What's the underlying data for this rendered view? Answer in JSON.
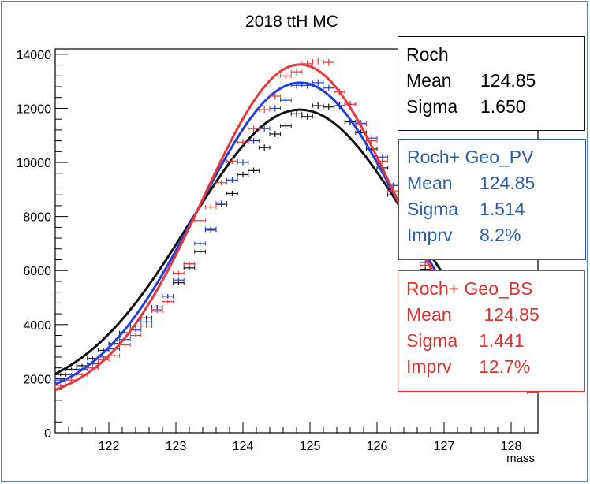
{
  "chart_data": {
    "type": "line",
    "title": "2018 ttH MC",
    "xlabel": "mass",
    "ylabel": "",
    "xlim": [
      121.2,
      128.4
    ],
    "ylim": [
      0,
      14200
    ],
    "xticks": [
      122,
      123,
      124,
      125,
      126,
      127,
      128
    ],
    "xtick_labels": [
      "122",
      "123",
      "124",
      "125",
      "126",
      "127",
      "128"
    ],
    "yticks": [
      0,
      2000,
      4000,
      6000,
      8000,
      10000,
      12000,
      14000
    ],
    "ytick_labels": [
      "0",
      "2000",
      "4000",
      "6000",
      "8000",
      "10000",
      "12000",
      "14000"
    ],
    "grid": false,
    "bin_width": 0.16,
    "series": [
      {
        "name": "Roch",
        "color": "#111111",
        "fit": {
          "mean": 124.85,
          "sigma": 1.65,
          "peak": 11950,
          "base": 1250
        },
        "points": [
          [
            121.28,
            2150
          ],
          [
            121.44,
            2350
          ],
          [
            121.6,
            2480
          ],
          [
            121.76,
            2750
          ],
          [
            121.92,
            3050
          ],
          [
            122.08,
            3300
          ],
          [
            122.24,
            3700
          ],
          [
            122.4,
            3950
          ],
          [
            122.56,
            4250
          ],
          [
            122.72,
            4650
          ],
          [
            122.88,
            5050
          ],
          [
            123.04,
            5550
          ],
          [
            123.2,
            6100
          ],
          [
            123.36,
            6700
          ],
          [
            123.52,
            7500
          ],
          [
            123.68,
            8450
          ],
          [
            123.84,
            8850
          ],
          [
            124.0,
            9550
          ],
          [
            124.16,
            9700
          ],
          [
            124.32,
            10550
          ],
          [
            124.48,
            11050
          ],
          [
            124.64,
            11350
          ],
          [
            124.8,
            11800
          ],
          [
            124.96,
            11700
          ],
          [
            125.12,
            12100
          ],
          [
            125.28,
            12050
          ],
          [
            125.44,
            12100
          ],
          [
            125.6,
            11500
          ],
          [
            125.76,
            11100
          ],
          [
            125.92,
            10500
          ],
          [
            126.08,
            9800
          ],
          [
            126.24,
            8800
          ],
          [
            126.4,
            8100
          ],
          [
            126.56,
            7100
          ],
          [
            126.72,
            6050
          ]
        ]
      },
      {
        "name": "Roch+ Geo_PV",
        "color": "#1f3fe0",
        "fit": {
          "mean": 124.85,
          "sigma": 1.514,
          "peak": 12950,
          "base": 1150
        },
        "points": [
          [
            121.28,
            1950
          ],
          [
            121.44,
            2150
          ],
          [
            121.6,
            2350
          ],
          [
            121.76,
            2550
          ],
          [
            121.92,
            2800
          ],
          [
            122.08,
            3100
          ],
          [
            122.24,
            3450
          ],
          [
            122.4,
            3800
          ],
          [
            122.56,
            4100
          ],
          [
            122.72,
            4550
          ],
          [
            122.88,
            5050
          ],
          [
            123.04,
            5650
          ],
          [
            123.2,
            6250
          ],
          [
            123.36,
            7000
          ],
          [
            123.52,
            7550
          ],
          [
            123.68,
            8500
          ],
          [
            123.84,
            9350
          ],
          [
            124.0,
            10000
          ],
          [
            124.16,
            10800
          ],
          [
            124.32,
            11250
          ],
          [
            124.48,
            12000
          ],
          [
            124.64,
            12300
          ],
          [
            124.8,
            12850
          ],
          [
            124.96,
            12850
          ],
          [
            125.12,
            12950
          ],
          [
            125.28,
            12750
          ],
          [
            125.44,
            12600
          ],
          [
            125.6,
            12150
          ],
          [
            125.76,
            11450
          ],
          [
            125.92,
            10900
          ],
          [
            126.08,
            10200
          ],
          [
            126.24,
            9150
          ],
          [
            126.4,
            8150
          ],
          [
            126.56,
            7300
          ],
          [
            126.72,
            6300
          ]
        ]
      },
      {
        "name": "Roch+ Geo_BS",
        "color": "#e8393a",
        "fit": {
          "mean": 124.85,
          "sigma": 1.441,
          "peak": 13620,
          "base": 1080
        },
        "points": [
          [
            121.28,
            1750
          ],
          [
            121.44,
            1950
          ],
          [
            121.6,
            2150
          ],
          [
            121.76,
            2400
          ],
          [
            121.92,
            2700
          ],
          [
            122.08,
            2850
          ],
          [
            122.24,
            3250
          ],
          [
            122.4,
            3600
          ],
          [
            122.56,
            3950
          ],
          [
            122.72,
            4500
          ],
          [
            122.88,
            4850
          ],
          [
            123.04,
            5900
          ],
          [
            123.2,
            6250
          ],
          [
            123.36,
            7850
          ],
          [
            123.52,
            8350
          ],
          [
            123.68,
            9250
          ],
          [
            123.84,
            10050
          ],
          [
            124.0,
            10750
          ],
          [
            124.16,
            11250
          ],
          [
            124.32,
            11950
          ],
          [
            124.48,
            12450
          ],
          [
            124.64,
            13200
          ],
          [
            124.8,
            13350
          ],
          [
            124.96,
            13650
          ],
          [
            125.12,
            13750
          ],
          [
            125.28,
            13700
          ],
          [
            125.44,
            12600
          ],
          [
            125.6,
            12150
          ],
          [
            125.76,
            11400
          ],
          [
            125.92,
            10800
          ],
          [
            126.08,
            10050
          ],
          [
            126.24,
            8950
          ],
          [
            126.4,
            8200
          ],
          [
            126.56,
            7050
          ],
          [
            126.72,
            6200
          ],
          [
            128.32,
            1500
          ]
        ]
      }
    ]
  },
  "stats": {
    "roch": {
      "title": "Roch",
      "mean_label": "Mean",
      "mean_value": "124.85",
      "sigma_label": "Sigma",
      "sigma_value": "1.650"
    },
    "geo_pv": {
      "title": "Roch+ Geo_PV",
      "mean_label": "Mean",
      "mean_value": "124.85",
      "sigma_label": "Sigma",
      "sigma_value": "1.514",
      "imprv_label": "Imprv",
      "imprv_value": "8.2%"
    },
    "geo_bs": {
      "title": "Roch+ Geo_BS",
      "mean_label": "Mean",
      "mean_value": " 124.85",
      "sigma_label": "Sigma",
      "sigma_value": "1.441",
      "imprv_label": "Imprv",
      "imprv_value": "12.7%"
    }
  }
}
